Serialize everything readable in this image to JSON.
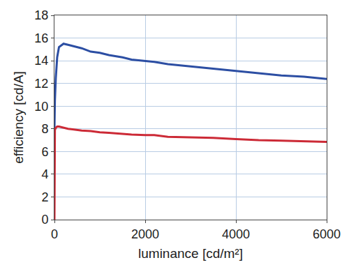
{
  "chart_data": {
    "type": "line",
    "x_label": "luminance [cd/m²]",
    "y_label": "efficiency [cd/A]",
    "x": [
      0,
      10,
      30,
      60,
      100,
      200,
      300,
      400,
      600,
      800,
      1000,
      1200,
      1500,
      1700,
      2000,
      2200,
      2500,
      3000,
      3500,
      4000,
      4500,
      5000,
      5500,
      6000
    ],
    "series": [
      {
        "color": "#2c4ea3",
        "values": [
          8.0,
          10.5,
          12.5,
          14.3,
          15.2,
          15.5,
          15.4,
          15.3,
          15.1,
          14.8,
          14.7,
          14.5,
          14.3,
          14.1,
          14.0,
          13.9,
          13.7,
          13.5,
          13.3,
          13.1,
          12.9,
          12.7,
          12.6,
          12.4
        ]
      },
      {
        "color": "#cc2a36",
        "values": [
          0,
          7.9,
          8.1,
          8.2,
          8.2,
          8.1,
          8.0,
          7.95,
          7.85,
          7.8,
          7.7,
          7.65,
          7.55,
          7.5,
          7.45,
          7.45,
          7.3,
          7.25,
          7.2,
          7.1,
          7.0,
          6.95,
          6.9,
          6.85
        ]
      }
    ],
    "xlim": [
      0,
      6000
    ],
    "xticks": [
      0,
      2000,
      4000,
      6000
    ],
    "ylim": [
      0,
      18
    ],
    "yticks": [
      0,
      2,
      4,
      6,
      8,
      10,
      12,
      14,
      16,
      18
    ],
    "grid": true
  }
}
